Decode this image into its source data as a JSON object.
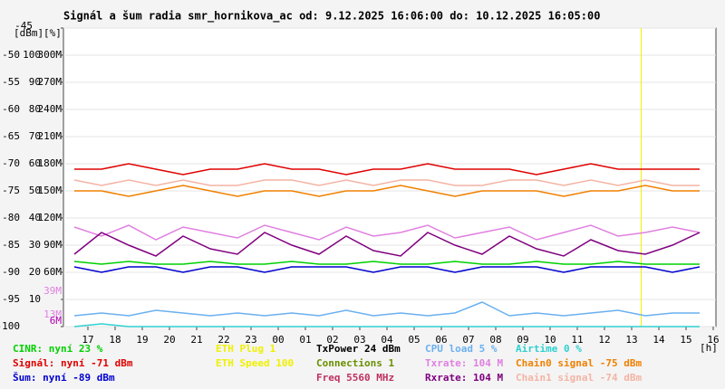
{
  "chart_data": {
    "type": "line",
    "title": "Signál a šum radia smr_hornikova_ac od: 9.12.2025 16:06:00 do: 10.12.2025 16:05:00",
    "ylabel": "[dBm]",
    "y2label": "[%]",
    "x": [
      0.5,
      1.5,
      2.5,
      3.5,
      4.5,
      5.5,
      6.5,
      7.5,
      8.5,
      9.5,
      10.5,
      11.5,
      12.5,
      13.5,
      14.5,
      15.5,
      16.5,
      17.5,
      18.5,
      19.5,
      20.5,
      21.5,
      22.5,
      23.5
    ],
    "xlim": [
      0.1,
      24.1
    ],
    "xticks": [
      {
        "value": 1,
        "label": "17"
      },
      {
        "value": 2,
        "label": "18"
      },
      {
        "value": 3,
        "label": "19"
      },
      {
        "value": 4,
        "label": "20"
      },
      {
        "value": 5,
        "label": "21"
      },
      {
        "value": 6,
        "label": "22"
      },
      {
        "value": 7,
        "label": "23"
      },
      {
        "value": 8,
        "label": "00"
      },
      {
        "value": 9,
        "label": "01"
      },
      {
        "value": 10,
        "label": "02"
      },
      {
        "value": 11,
        "label": "03"
      },
      {
        "value": 12,
        "label": "04"
      },
      {
        "value": 13,
        "label": "05"
      },
      {
        "value": 14,
        "label": "06"
      },
      {
        "value": 15,
        "label": "07"
      },
      {
        "value": 16,
        "label": "08"
      },
      {
        "value": 17,
        "label": "09"
      },
      {
        "value": 18,
        "label": "10"
      },
      {
        "value": 19,
        "label": "11"
      },
      {
        "value": 20,
        "label": "12"
      },
      {
        "value": 21,
        "label": "13"
      },
      {
        "value": 22,
        "label": "14"
      },
      {
        "value": 23,
        "label": "15"
      },
      {
        "value": 24,
        "label": "16"
      }
    ],
    "xunit": "[h]",
    "ylim": [
      -100,
      -45
    ],
    "yticks": [
      -100,
      -95,
      -90,
      -85,
      -80,
      -75,
      -70,
      -65,
      -60,
      -55,
      -50,
      -45
    ],
    "y2lim": [
      0,
      110
    ],
    "y2ticks": [
      10,
      20,
      30,
      40,
      50,
      60,
      70,
      80,
      90,
      100
    ],
    "y3lim": [
      0,
      330
    ],
    "y3ticks": [
      {
        "value": 60,
        "label": "60M"
      },
      {
        "value": 90,
        "label": "90M"
      },
      {
        "value": 120,
        "label": "120M"
      },
      {
        "value": 150,
        "label": "150M"
      },
      {
        "value": 180,
        "label": "180M"
      },
      {
        "value": 210,
        "label": "210M"
      },
      {
        "value": 240,
        "label": "240M"
      },
      {
        "value": 270,
        "label": "270M"
      },
      {
        "value": 300,
        "label": "300M"
      }
    ],
    "y3markers": [
      {
        "value": 39,
        "label": "39M",
        "color": "#e080e0"
      },
      {
        "value": 13,
        "label": "13M",
        "color": "#e080e0"
      },
      {
        "value": 6,
        "label": "6M",
        "color": "#b000b0"
      }
    ],
    "grid": true,
    "now_x": 21.35,
    "series": [
      {
        "name": "Chain1 signal -74 dBm",
        "color": "#f4b4a4",
        "axis": "y",
        "values": [
          -73,
          -74,
          -73,
          -74,
          -73,
          -74,
          -74,
          -73,
          -73,
          -74,
          -73,
          -74,
          -73,
          -73,
          -74,
          -74,
          -73,
          -73,
          -74,
          -73,
          -74,
          -73,
          -74,
          -74
        ]
      },
      {
        "name": "Chain0 signal -75 dBm",
        "color": "#f08000",
        "axis": "y",
        "values": [
          -75,
          -75,
          -76,
          -75,
          -74,
          -75,
          -76,
          -75,
          -75,
          -76,
          -75,
          -75,
          -74,
          -75,
          -76,
          -75,
          -75,
          -75,
          -76,
          -75,
          -75,
          -74,
          -75,
          -75
        ]
      },
      {
        "name": "Signál: nyní -71 dBm",
        "color": "#e00000",
        "axis": "y",
        "values": [
          -71,
          -71,
          -70,
          -71,
          -72,
          -71,
          -71,
          -70,
          -71,
          -71,
          -72,
          -71,
          -71,
          -70,
          -71,
          -71,
          -71,
          -72,
          -71,
          -70,
          -71,
          -71,
          -71,
          -71
        ]
      },
      {
        "name": "Txrate: 104 M",
        "color": "#e080e0",
        "axis": "y3",
        "values": [
          110,
          100,
          112,
          96,
          110,
          104,
          98,
          112,
          104,
          96,
          110,
          100,
          104,
          112,
          98,
          104,
          110,
          96,
          104,
          112,
          100,
          104,
          110,
          104
        ]
      },
      {
        "name": "Rxrate: 104 M",
        "color": "#800080",
        "axis": "y3",
        "values": [
          80,
          104,
          90,
          78,
          100,
          86,
          80,
          104,
          90,
          80,
          100,
          84,
          78,
          104,
          90,
          80,
          100,
          86,
          78,
          96,
          84,
          80,
          90,
          104
        ]
      },
      {
        "name": "CINR: nyní 23 %",
        "color": "#00d000",
        "axis": "y2",
        "values": [
          24,
          23,
          24,
          23,
          23,
          24,
          23,
          23,
          24,
          23,
          23,
          24,
          23,
          23,
          24,
          23,
          23,
          24,
          23,
          23,
          24,
          23,
          23,
          23
        ]
      },
      {
        "name": "Šum: nyní -89 dBm",
        "color": "#0000d0",
        "axis": "y",
        "values": [
          -89,
          -90,
          -89,
          -89,
          -90,
          -89,
          -89,
          -90,
          -89,
          -89,
          -89,
          -90,
          -89,
          -89,
          -90,
          -89,
          -89,
          -89,
          -90,
          -89,
          -89,
          -89,
          -90,
          -89
        ]
      },
      {
        "name": "CPU load 5 %",
        "color": "#6ab0f0",
        "axis": "y2",
        "values": [
          4,
          5,
          4,
          6,
          5,
          4,
          5,
          4,
          5,
          4,
          6,
          4,
          5,
          4,
          5,
          9,
          4,
          5,
          4,
          5,
          6,
          4,
          5,
          5
        ]
      },
      {
        "name": "Airtime 0 %",
        "color": "#30d0d0",
        "axis": "y2",
        "values": [
          0,
          1,
          0,
          0,
          0,
          0,
          0,
          0,
          0,
          0,
          0,
          0,
          0,
          0,
          0,
          0,
          0,
          0,
          0,
          0,
          0,
          0,
          0,
          0
        ]
      }
    ],
    "legend_notes": [
      {
        "text": "ETH Plug 1",
        "color": "#f0f000"
      },
      {
        "text": "ETH Speed 100",
        "color": "#f0f000"
      },
      {
        "text": "TxPower 24 dBm",
        "color": "#000000"
      },
      {
        "text": "Connections 1",
        "color": "#6a8f00"
      },
      {
        "text": "Freq 5560 MHz",
        "color": "#c03060"
      }
    ]
  }
}
